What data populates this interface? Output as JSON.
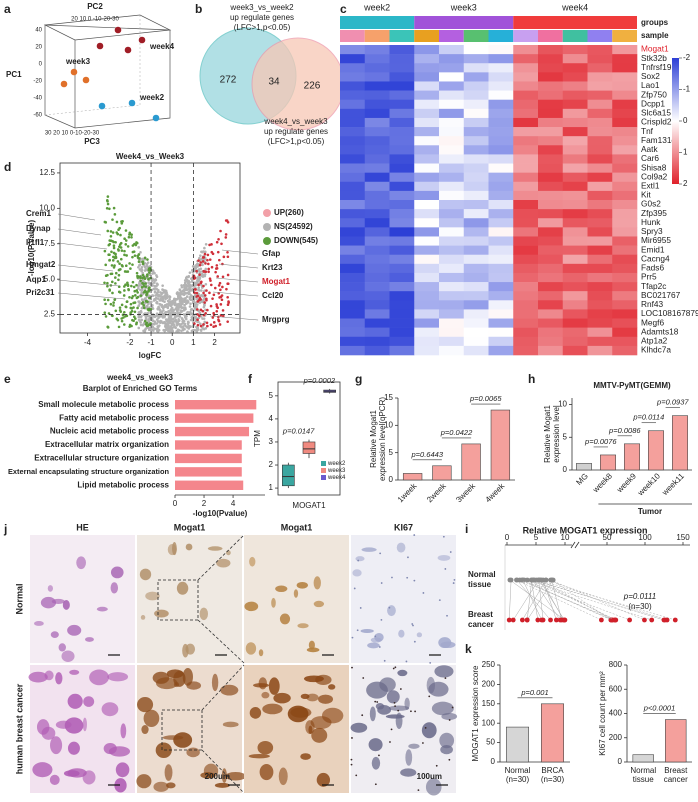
{
  "panel_labels": [
    "a",
    "b",
    "c",
    "d",
    "e",
    "f",
    "g",
    "h",
    "i",
    "j",
    "k"
  ],
  "pca": {
    "axis_labels": [
      "PC2",
      "PC1",
      "PC3"
    ],
    "groups": [
      "week4",
      "week3",
      "week2"
    ],
    "pc2_ticks": "20 10 0 -10-20-30",
    "pc1_ticks": [
      "40",
      "20",
      "0",
      "-20",
      "-40",
      "-60"
    ],
    "pc3_ticks": "30 20 10 0-10-20-30"
  },
  "venn": {
    "top_label": [
      "week3_vs_week2",
      "up regulate genes",
      "(LFC>1,p<0.05)"
    ],
    "left": 272,
    "overlap": 34,
    "right": 226,
    "bottom_label": [
      "week4_vs_week3",
      "up regulate genes",
      "(LFC>1,p<0.05)"
    ],
    "colors": [
      "#a9dde3",
      "#f7c7b5"
    ]
  },
  "heatmap": {
    "groups": [
      "week2",
      "week3",
      "week4"
    ],
    "group_colors": [
      "#2cb7c8",
      "#a153d9",
      "#f03b3b"
    ],
    "legend": [
      "groups",
      "sample"
    ],
    "genes": [
      "Mogat1",
      "Stk32b",
      "Tnfrsf19",
      "Sox2",
      "Lao1",
      "Zfp750",
      "Dcpp1",
      "Slc6a15",
      "Crispld2",
      "Tnf",
      "Fam131c",
      "Aatk",
      "Car6",
      "Shisa8",
      "Col9a2",
      "Extl1",
      "Kit",
      "G0s2",
      "Zfp395",
      "Hunk",
      "Spry3",
      "Mir6955",
      "Emid1",
      "Cacng4",
      "Fads6",
      "Prr5",
      "Tfap2c",
      "BC021767",
      "Rnf43",
      "LOC108167879",
      "Megf6",
      "Adamts18",
      "Atp1a2",
      "Klhdc7a"
    ],
    "highlight_index": 0,
    "highlight_color": "#e0202a",
    "colorbar_ticks": [
      -2,
      -1,
      0,
      1,
      2
    ]
  },
  "volcano": {
    "title": "Week4_vs_Week3",
    "ylabel": "-log10(P.Value)",
    "xlabel": "logFC",
    "xlim": [
      -5.3,
      3.2
    ],
    "ylim": [
      1.2,
      13.2
    ],
    "xticks": [
      -4,
      -2,
      -1,
      0,
      1,
      2
    ],
    "yticks": [
      2.5,
      {
        "value": 5,
        "label": "5.0"
      },
      7.5,
      {
        "value": 10,
        "label": "10.0"
      },
      12.5
    ],
    "cutoffs": [
      -1,
      1
    ],
    "p_cutoff": 2.5,
    "legend": [
      "UP(260)",
      "NS(24592)",
      "DOWN(545)"
    ],
    "colors": [
      "#f2a0a8",
      "#b3b3b3",
      "#5b9b3b"
    ],
    "left_genes": [
      "Crem1",
      "Dynap",
      "Il1fl1",
      "Hmgat2",
      "Aqp1",
      "Pri2c31"
    ],
    "right_genes": [
      "Gfap",
      "Krt23",
      "Mogat1",
      "Ccl20",
      "Mrgprg"
    ],
    "highlight_index": 2,
    "highlight_color": "#d0202a"
  },
  "chart_data": [
    {
      "type": "barh",
      "title": "week4_vs_week3",
      "subtitle": "Barplot of Enriched GO Terms",
      "categories": [
        "Small molecule metabolic process",
        "Fatty acid metabolic process",
        "Nucleic acid metabolic process",
        "Extracellular matrix organization",
        "Extracellular structure organization",
        "External encapsulating structure organization",
        "Lipid metabolic process"
      ],
      "values": [
        5.6,
        5.4,
        5.1,
        4.6,
        4.6,
        4.6,
        4.7
      ],
      "color": "#f4868c",
      "xlim": [
        0,
        6.2
      ],
      "xticks": [
        0,
        2,
        4
      ],
      "xlabel": "-log10(Pvalue)"
    },
    {
      "type": "box",
      "ylabel": "TPM",
      "xlabel": "MOGAT1",
      "ylim": [
        0.7,
        5.6
      ],
      "yticks": [
        1,
        2,
        3,
        4,
        5
      ],
      "series": [
        {
          "name": "week2",
          "color": "#3aa6a0",
          "values": [
            1.0,
            1.1,
            1.5,
            2.0,
            2.1
          ]
        },
        {
          "name": "week3",
          "color": "#f08a80",
          "values": [
            2.3,
            2.5,
            2.7,
            3.0,
            3.1
          ]
        },
        {
          "name": "week4",
          "color": "#6a5acd",
          "values": [
            5.1,
            5.15,
            5.2,
            5.25,
            5.3
          ]
        }
      ],
      "annotations": [
        "p=0.0147",
        "p=0.0002"
      ]
    },
    {
      "type": "bar",
      "ylabel": [
        "Relative Mogat1",
        "expression level(qPCR)"
      ],
      "categories": [
        "1week",
        "2week",
        "3week",
        "4week"
      ],
      "values": [
        1.2,
        2.6,
        6.6,
        12.8
      ],
      "color": "#f4a09c",
      "ylim": [
        0,
        15
      ],
      "yticks": [
        0,
        5,
        10,
        15
      ],
      "annotations": [
        "p=0.6443",
        "p=0.0422",
        "p=0.0065"
      ]
    },
    {
      "type": "bar",
      "title": "MMTV-PyMT(GEMM)",
      "ylabel": [
        "Relative Mogat1",
        "expression level"
      ],
      "categories": [
        "MG",
        "week8",
        "week9",
        "week10",
        "week11"
      ],
      "values": [
        1,
        2.3,
        4,
        6,
        8.3
      ],
      "colors": [
        "#d0d0d0",
        "#f4a09c",
        "#f4a09c",
        "#f4a09c",
        "#f4a09c"
      ],
      "ylim": [
        0,
        11
      ],
      "yticks": [
        0,
        5,
        10
      ],
      "annotations": [
        "p=0.0076",
        "p=0.0086",
        "p=0.0114",
        "p=0.0937"
      ],
      "group_label": "Tumor"
    },
    {
      "type": "bar",
      "ylabel": [
        "MOGAT1 expression score"
      ],
      "categories": [
        [
          "Normal",
          "(n=30)"
        ],
        [
          "BRCA",
          "(n=30)"
        ]
      ],
      "values": [
        90,
        150
      ],
      "colors": [
        "#d6d6d6",
        "#f4a09c"
      ],
      "ylim": [
        0,
        250
      ],
      "yticks": [
        0,
        50,
        100,
        150,
        200,
        250
      ],
      "annotations": [
        "p=0.001"
      ]
    },
    {
      "type": "bar",
      "ylabel": [
        "KI67 cell count per mm²"
      ],
      "categories": [
        [
          "Normal",
          "tissue"
        ],
        [
          "Breast",
          "cancer"
        ]
      ],
      "values": [
        60,
        350
      ],
      "colors": [
        "#d6d6d6",
        "#f4a09c"
      ],
      "ylim": [
        0,
        800
      ],
      "yticks": [
        0,
        200,
        400,
        600,
        800
      ],
      "annotations": [
        "p<0.0001"
      ]
    }
  ],
  "histology": {
    "columns": [
      "HE",
      "Mogat1",
      "Mogat1",
      "KI67"
    ],
    "rows": [
      "Normal",
      "human breast cancer"
    ],
    "scale_bars": [
      "200um",
      "100um"
    ]
  },
  "panel_i": {
    "title": "Relative MOGAT1 expression",
    "xticks": [
      0,
      5,
      10,
      50,
      100,
      150
    ],
    "rows": [
      [
        "Normal",
        "tissue"
      ],
      [
        "Breast",
        "cancer"
      ]
    ],
    "annotations": [
      "p=0.0111",
      "(n=30)"
    ]
  }
}
